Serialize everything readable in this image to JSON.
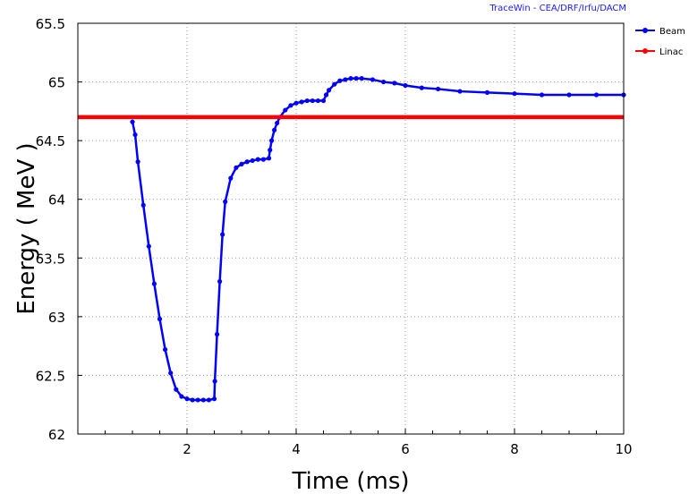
{
  "credit": "TraceWin - CEA/DRF/Irfu/DACM",
  "legend": [
    {
      "label": "Beam",
      "color": "#0000ff"
    },
    {
      "label": "Linac",
      "color": "#ff0000"
    }
  ],
  "chart_data": {
    "type": "line",
    "title": "",
    "xlabel": "Time (ms)",
    "ylabel": "Energy ( MeV )",
    "xlim": [
      0,
      10
    ],
    "ylim": [
      62,
      65.5
    ],
    "x_ticks": [
      2,
      4,
      6,
      8,
      10
    ],
    "x_minor_step": 0.5,
    "y_ticks": [
      62,
      62.5,
      63,
      63.5,
      64,
      64.5,
      65,
      65.5
    ],
    "y_tick_labels": [
      "62",
      "62.5",
      "63",
      "63.5",
      "64",
      "64.5",
      "65",
      "65.5"
    ],
    "grid": true,
    "legend_position": "top-right, outside plot",
    "series": [
      {
        "name": "Beam",
        "color": "#0000ff",
        "markers": true,
        "x": [
          1.0,
          1.05,
          1.1,
          1.2,
          1.3,
          1.4,
          1.5,
          1.6,
          1.7,
          1.8,
          1.9,
          2.0,
          2.1,
          2.2,
          2.3,
          2.4,
          2.5,
          2.51,
          2.55,
          2.6,
          2.65,
          2.7,
          2.8,
          2.9,
          3.0,
          3.1,
          3.2,
          3.3,
          3.4,
          3.5,
          3.52,
          3.55,
          3.6,
          3.65,
          3.7,
          3.8,
          3.9,
          4.0,
          4.1,
          4.2,
          4.3,
          4.4,
          4.5,
          4.55,
          4.6,
          4.7,
          4.8,
          4.9,
          5.0,
          5.1,
          5.2,
          5.4,
          5.6,
          5.8,
          6.0,
          6.3,
          6.6,
          7.0,
          7.5,
          8.0,
          8.5,
          9.0,
          9.5,
          10.0
        ],
        "y": [
          64.66,
          64.55,
          64.32,
          63.95,
          63.6,
          63.28,
          62.98,
          62.72,
          62.52,
          62.38,
          62.32,
          62.3,
          62.29,
          62.29,
          62.29,
          62.29,
          62.3,
          62.45,
          62.85,
          63.3,
          63.7,
          63.98,
          64.18,
          64.27,
          64.3,
          64.32,
          64.33,
          64.34,
          64.34,
          64.35,
          64.42,
          64.5,
          64.59,
          64.65,
          64.7,
          64.76,
          64.8,
          64.82,
          64.83,
          64.84,
          64.84,
          64.84,
          64.84,
          64.89,
          64.93,
          64.98,
          65.01,
          65.02,
          65.03,
          65.03,
          65.03,
          65.02,
          65.0,
          64.99,
          64.97,
          64.95,
          64.94,
          64.92,
          64.91,
          64.9,
          64.89,
          64.89,
          64.89,
          64.89
        ]
      },
      {
        "name": "Linac",
        "color": "#ff0000",
        "markers": false,
        "x": [
          0,
          10
        ],
        "y": [
          64.7,
          64.7
        ]
      }
    ]
  }
}
